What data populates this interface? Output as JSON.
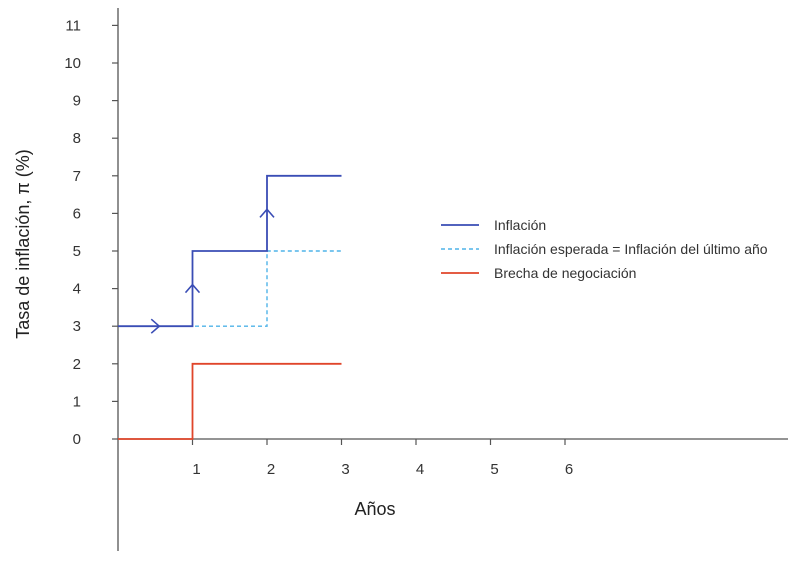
{
  "chart_data": {
    "type": "line",
    "title": "",
    "xlabel": "Años",
    "ylabel": "Tasa de inflación, π (%)",
    "xlim": [
      -1,
      9
    ],
    "ylim": [
      -3,
      11.4
    ],
    "x_ticks": [
      1,
      2,
      3,
      4,
      5,
      6
    ],
    "y_ticks": [
      0,
      1,
      2,
      3,
      4,
      5,
      6,
      7,
      8,
      9,
      10,
      11
    ],
    "grid": false,
    "legend_position": "right",
    "series": [
      {
        "name": "Inflación",
        "color": "#3a4db5",
        "style": "solid",
        "step": true,
        "x": [
          0,
          1,
          2,
          3
        ],
        "y": [
          3,
          5,
          7,
          7
        ]
      },
      {
        "name": "Inflación esperada = Inflación del último año",
        "color": "#4fb3e8",
        "style": "dashed",
        "step": true,
        "x": [
          0,
          2,
          3
        ],
        "y": [
          3,
          5,
          5
        ]
      },
      {
        "name": "Brecha de negociación",
        "color": "#e0452a",
        "style": "solid",
        "step": true,
        "x": [
          0,
          1,
          3
        ],
        "y": [
          0,
          2,
          2
        ]
      }
    ],
    "arrows": [
      {
        "x": 0.5,
        "y": 3,
        "direction": "right"
      },
      {
        "x": 1,
        "y": 4,
        "direction": "up"
      },
      {
        "x": 2,
        "y": 6,
        "direction": "up"
      }
    ]
  }
}
